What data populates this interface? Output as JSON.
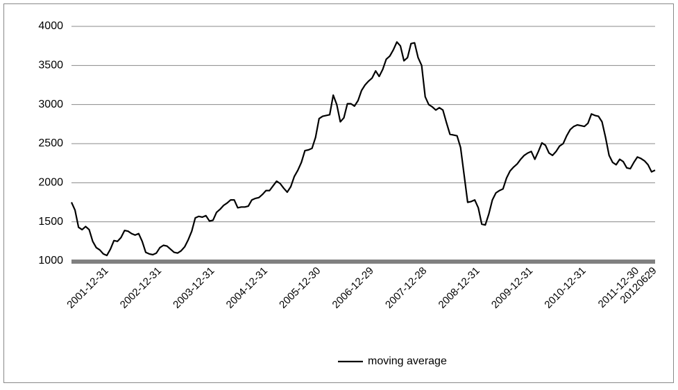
{
  "chart_data": {
    "type": "line",
    "categories": [
      null,
      null,
      null,
      null,
      null,
      null,
      null,
      null,
      null,
      null,
      "2001-12-31",
      null,
      null,
      null,
      null,
      null,
      null,
      null,
      null,
      null,
      null,
      null,
      null,
      null,
      null,
      "2002-12-31",
      null,
      null,
      null,
      null,
      null,
      null,
      null,
      null,
      null,
      null,
      null,
      null,
      null,
      null,
      "2003-12-31",
      null,
      null,
      null,
      null,
      null,
      null,
      null,
      null,
      null,
      null,
      null,
      null,
      null,
      null,
      "2004-12-31",
      null,
      null,
      null,
      null,
      null,
      null,
      null,
      null,
      null,
      null,
      null,
      null,
      null,
      null,
      "2005-12-30",
      null,
      null,
      null,
      null,
      null,
      null,
      null,
      null,
      null,
      null,
      null,
      null,
      null,
      null,
      "2006-12-29",
      null,
      null,
      null,
      null,
      null,
      null,
      null,
      null,
      null,
      null,
      null,
      null,
      null,
      null,
      "2007-12-28",
      null,
      null,
      null,
      null,
      null,
      null,
      null,
      null,
      null,
      null,
      null,
      null,
      null,
      null,
      "2008-12-31",
      null,
      null,
      null,
      null,
      null,
      null,
      null,
      null,
      null,
      null,
      null,
      null,
      null,
      null,
      "2009-12-31",
      null,
      null,
      null,
      null,
      null,
      null,
      null,
      null,
      null,
      null,
      null,
      null,
      null,
      null,
      "2010-12-31",
      null,
      null,
      null,
      null,
      null,
      null,
      null,
      null,
      null,
      null,
      null,
      null,
      null,
      null,
      "2011-12-30",
      null,
      null,
      null,
      null,
      "20120629"
    ],
    "series": [
      {
        "name": "moving average",
        "color": "#000000",
        "values": [
          1750,
          1650,
          1430,
          1400,
          1440,
          1400,
          1250,
          1170,
          1140,
          1090,
          1070,
          1150,
          1260,
          1250,
          1300,
          1390,
          1380,
          1350,
          1330,
          1350,
          1250,
          1110,
          1090,
          1080,
          1100,
          1170,
          1200,
          1190,
          1150,
          1110,
          1100,
          1130,
          1180,
          1270,
          1380,
          1550,
          1570,
          1560,
          1580,
          1510,
          1520,
          1620,
          1660,
          1710,
          1740,
          1780,
          1780,
          1680,
          1690,
          1690,
          1700,
          1780,
          1800,
          1810,
          1850,
          1900,
          1900,
          1960,
          2020,
          1990,
          1930,
          1880,
          1950,
          2080,
          2160,
          2260,
          2410,
          2420,
          2440,
          2580,
          2820,
          2850,
          2860,
          2870,
          3120,
          3000,
          2780,
          2830,
          3010,
          3010,
          2980,
          3050,
          3180,
          3250,
          3300,
          3340,
          3430,
          3360,
          3450,
          3580,
          3620,
          3700,
          3800,
          3750,
          3560,
          3600,
          3780,
          3790,
          3600,
          3500,
          3100,
          3000,
          2970,
          2930,
          2960,
          2930,
          2770,
          2620,
          2610,
          2600,
          2450,
          2100,
          1750,
          1760,
          1780,
          1680,
          1470,
          1460,
          1600,
          1780,
          1870,
          1900,
          1920,
          2060,
          2150,
          2200,
          2240,
          2300,
          2350,
          2380,
          2400,
          2300,
          2400,
          2510,
          2480,
          2380,
          2350,
          2400,
          2470,
          2500,
          2600,
          2680,
          2720,
          2740,
          2730,
          2720,
          2760,
          2880,
          2860,
          2850,
          2780,
          2580,
          2350,
          2260,
          2230,
          2300,
          2270,
          2190,
          2180,
          2260,
          2330,
          2310,
          2280,
          2230,
          2140,
          2160
        ]
      }
    ],
    "ylim": [
      1000,
      4000
    ],
    "yticks": [
      1000,
      1500,
      2000,
      2500,
      3000,
      3500,
      4000
    ],
    "grid": true,
    "legend": "bottom"
  }
}
